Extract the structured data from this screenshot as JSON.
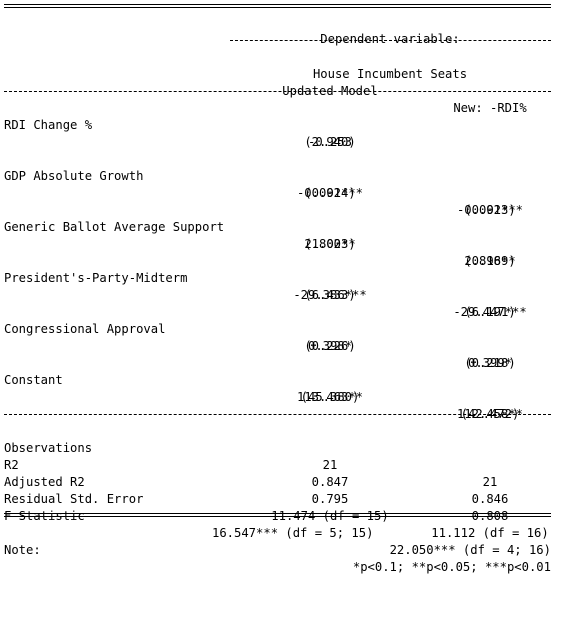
{
  "header": {
    "dependent_variable": "Dependent variable:",
    "variable_name": "House Incumbent Seats",
    "col1": "Updated Model",
    "col2": "New: -RDI%"
  },
  "coefficients": [
    {
      "label": "RDI Change %",
      "c1": "-0.253",
      "c1_se": "(2.940)",
      "c2": "",
      "c2_se": ""
    },
    {
      "label": "GDP Absolute Growth",
      "c1": "-0.091***",
      "c1_se": "(0.024)",
      "c2": "-0.091***",
      "c2_se": "(0.023)"
    },
    {
      "label": "Generic Ballot Average Support",
      "c1": "2.800**",
      "c1_se": "(1.023)",
      "c2": "2.818**",
      "c2_se": "(0.969)"
    },
    {
      "label": "President's-Party-Midterm",
      "c1": "-29.386***",
      "c1_se": "(6.433)",
      "c2": "-29.447***",
      "c2_se": "(6.191)"
    },
    {
      "label": "Congressional Approval",
      "c1": "0.398*",
      "c1_se": "(0.226)",
      "c2": "0.399*",
      "c2_se": "(0.218)"
    },
    {
      "label": "Constant",
      "c1": "113.463**",
      "c1_se": "(45.380)",
      "c2": "112.458**",
      "c2_se": "(42.472)"
    }
  ],
  "stats": [
    {
      "label": "Observations",
      "c1": "21",
      "c2": "21"
    },
    {
      "label": "R2",
      "c1": "0.847",
      "c2": "0.846"
    },
    {
      "label": "Adjusted R2",
      "c1": "0.795",
      "c2": "0.808"
    },
    {
      "label": "Residual Std. Error",
      "c1": "11.474 (df = 15)",
      "c2": "11.112 (df = 16)"
    }
  ],
  "fstat": {
    "label": "F Statistic",
    "c1": "16.547*** (df = 5; 15)",
    "c2": "22.050*** (df = 4; 16)"
  },
  "note": {
    "label": "Note:",
    "text": "*p<0.1; **p<0.05; ***p<0.01"
  }
}
